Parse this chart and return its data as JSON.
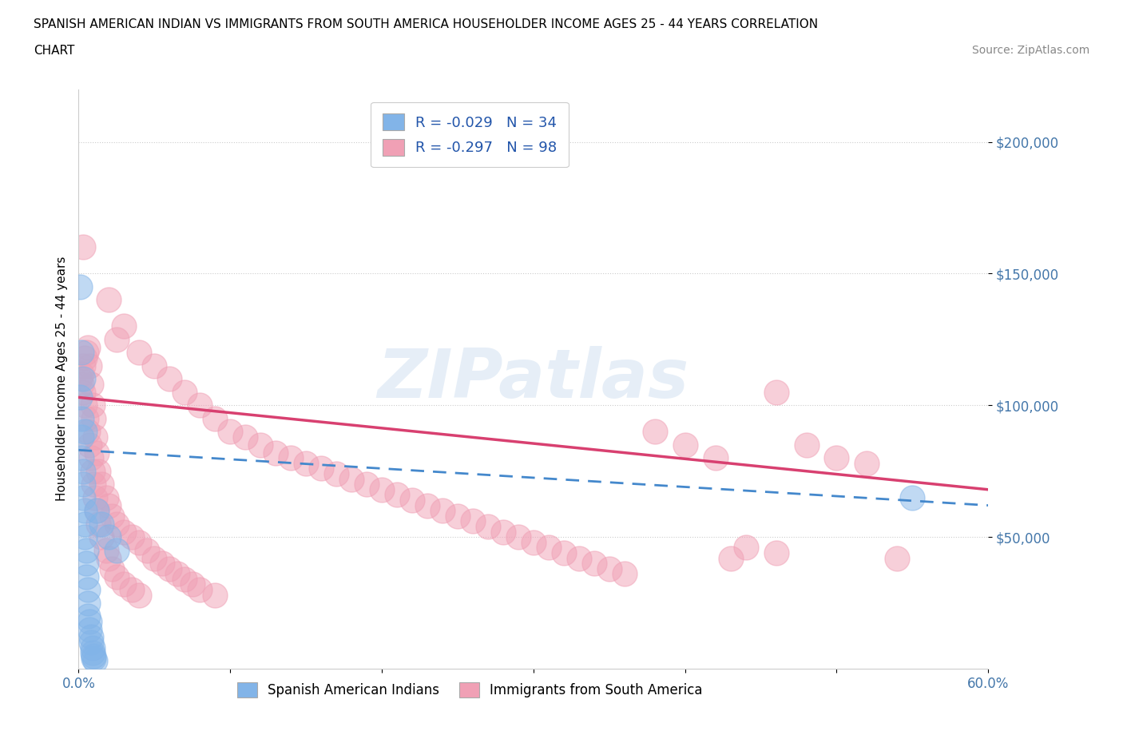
{
  "title_line1": "SPANISH AMERICAN INDIAN VS IMMIGRANTS FROM SOUTH AMERICA HOUSEHOLDER INCOME AGES 25 - 44 YEARS CORRELATION",
  "title_line2": "CHART",
  "source": "Source: ZipAtlas.com",
  "ylabel": "Householder Income Ages 25 - 44 years",
  "xlim": [
    0.0,
    0.6
  ],
  "ylim": [
    0,
    220000
  ],
  "xticks": [
    0.0,
    0.1,
    0.2,
    0.3,
    0.4,
    0.5,
    0.6
  ],
  "xticklabels": [
    "0.0%",
    "",
    "",
    "",
    "",
    "",
    "60.0%"
  ],
  "ytick_values": [
    50000,
    100000,
    150000,
    200000
  ],
  "ytick_labels": [
    "$50,000",
    "$100,000",
    "$150,000",
    "$200,000"
  ],
  "watermark": "ZIPatlas",
  "legend_R_blue": "R = -0.029",
  "legend_N_blue": "N = 34",
  "legend_R_pink": "R = -0.297",
  "legend_N_pink": "N = 98",
  "blue_color": "#82b4e8",
  "pink_color": "#f0a0b5",
  "trend_blue_color": "#4488cc",
  "trend_pink_color": "#d84070",
  "blue_scatter": [
    [
      0.001,
      103000
    ],
    [
      0.002,
      95000
    ],
    [
      0.002,
      88000
    ],
    [
      0.002,
      80000
    ],
    [
      0.003,
      75000
    ],
    [
      0.003,
      70000
    ],
    [
      0.003,
      65000
    ],
    [
      0.004,
      60000
    ],
    [
      0.004,
      55000
    ],
    [
      0.004,
      50000
    ],
    [
      0.005,
      45000
    ],
    [
      0.005,
      40000
    ],
    [
      0.005,
      35000
    ],
    [
      0.006,
      30000
    ],
    [
      0.006,
      25000
    ],
    [
      0.006,
      20000
    ],
    [
      0.007,
      18000
    ],
    [
      0.007,
      15000
    ],
    [
      0.008,
      12000
    ],
    [
      0.008,
      10000
    ],
    [
      0.009,
      8000
    ],
    [
      0.009,
      6000
    ],
    [
      0.01,
      5000
    ],
    [
      0.01,
      4000
    ],
    [
      0.011,
      3000
    ],
    [
      0.001,
      145000
    ],
    [
      0.012,
      60000
    ],
    [
      0.015,
      55000
    ],
    [
      0.02,
      50000
    ],
    [
      0.025,
      45000
    ],
    [
      0.003,
      110000
    ],
    [
      0.002,
      120000
    ],
    [
      0.004,
      90000
    ],
    [
      0.55,
      65000
    ]
  ],
  "pink_scatter": [
    [
      0.001,
      110000
    ],
    [
      0.002,
      112000
    ],
    [
      0.002,
      108000
    ],
    [
      0.003,
      115000
    ],
    [
      0.003,
      105000
    ],
    [
      0.004,
      118000
    ],
    [
      0.004,
      100000
    ],
    [
      0.005,
      120000
    ],
    [
      0.005,
      95000
    ],
    [
      0.006,
      122000
    ],
    [
      0.006,
      90000
    ],
    [
      0.007,
      115000
    ],
    [
      0.007,
      85000
    ],
    [
      0.008,
      108000
    ],
    [
      0.008,
      80000
    ],
    [
      0.009,
      100000
    ],
    [
      0.009,
      75000
    ],
    [
      0.01,
      95000
    ],
    [
      0.01,
      70000
    ],
    [
      0.011,
      88000
    ],
    [
      0.011,
      65000
    ],
    [
      0.012,
      82000
    ],
    [
      0.012,
      60000
    ],
    [
      0.013,
      75000
    ],
    [
      0.013,
      55000
    ],
    [
      0.015,
      70000
    ],
    [
      0.015,
      50000
    ],
    [
      0.018,
      65000
    ],
    [
      0.018,
      45000
    ],
    [
      0.02,
      62000
    ],
    [
      0.02,
      42000
    ],
    [
      0.022,
      58000
    ],
    [
      0.022,
      38000
    ],
    [
      0.025,
      55000
    ],
    [
      0.025,
      35000
    ],
    [
      0.03,
      52000
    ],
    [
      0.03,
      32000
    ],
    [
      0.035,
      50000
    ],
    [
      0.035,
      30000
    ],
    [
      0.04,
      48000
    ],
    [
      0.04,
      28000
    ],
    [
      0.045,
      45000
    ],
    [
      0.05,
      42000
    ],
    [
      0.055,
      40000
    ],
    [
      0.06,
      38000
    ],
    [
      0.065,
      36000
    ],
    [
      0.07,
      34000
    ],
    [
      0.075,
      32000
    ],
    [
      0.08,
      30000
    ],
    [
      0.09,
      28000
    ],
    [
      0.003,
      160000
    ],
    [
      0.02,
      140000
    ],
    [
      0.03,
      130000
    ],
    [
      0.025,
      125000
    ],
    [
      0.04,
      120000
    ],
    [
      0.05,
      115000
    ],
    [
      0.06,
      110000
    ],
    [
      0.07,
      105000
    ],
    [
      0.08,
      100000
    ],
    [
      0.09,
      95000
    ],
    [
      0.1,
      90000
    ],
    [
      0.11,
      88000
    ],
    [
      0.12,
      85000
    ],
    [
      0.13,
      82000
    ],
    [
      0.14,
      80000
    ],
    [
      0.15,
      78000
    ],
    [
      0.16,
      76000
    ],
    [
      0.17,
      74000
    ],
    [
      0.18,
      72000
    ],
    [
      0.19,
      70000
    ],
    [
      0.2,
      68000
    ],
    [
      0.21,
      66000
    ],
    [
      0.22,
      64000
    ],
    [
      0.23,
      62000
    ],
    [
      0.24,
      60000
    ],
    [
      0.25,
      58000
    ],
    [
      0.26,
      56000
    ],
    [
      0.27,
      54000
    ],
    [
      0.28,
      52000
    ],
    [
      0.29,
      50000
    ],
    [
      0.3,
      48000
    ],
    [
      0.31,
      46000
    ],
    [
      0.32,
      44000
    ],
    [
      0.33,
      42000
    ],
    [
      0.34,
      40000
    ],
    [
      0.35,
      38000
    ],
    [
      0.36,
      36000
    ],
    [
      0.38,
      90000
    ],
    [
      0.4,
      85000
    ],
    [
      0.42,
      80000
    ],
    [
      0.44,
      46000
    ],
    [
      0.46,
      44000
    ],
    [
      0.48,
      85000
    ],
    [
      0.5,
      80000
    ],
    [
      0.52,
      78000
    ],
    [
      0.54,
      42000
    ],
    [
      0.43,
      42000
    ],
    [
      0.46,
      105000
    ]
  ],
  "background_color": "#ffffff",
  "grid_color": "#dddddd",
  "axis_color": "#cccccc",
  "tick_color": "#4477aa",
  "legend_label_blue": "Spanish American Indians",
  "legend_label_pink": "Immigrants from South America"
}
